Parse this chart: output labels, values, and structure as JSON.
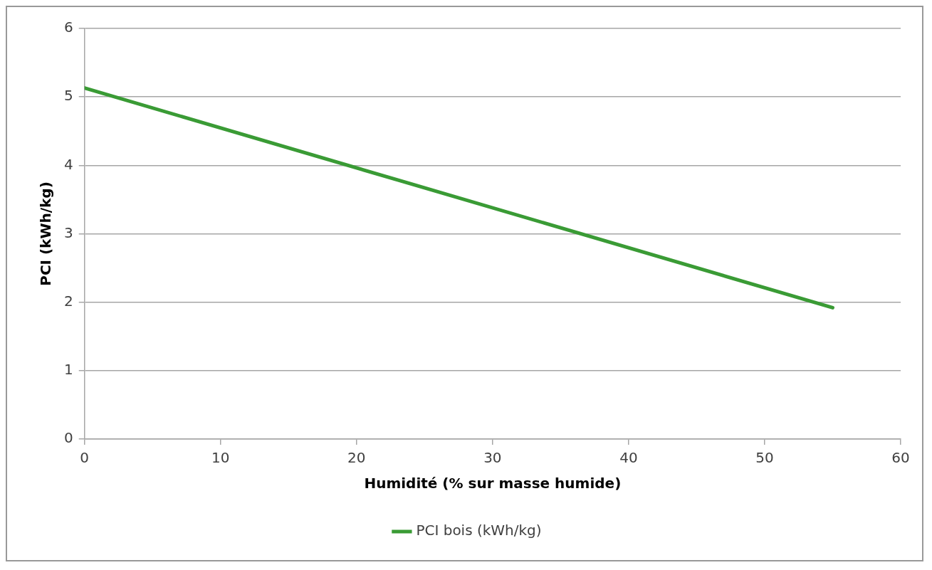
{
  "chart_data": {
    "type": "line",
    "xlabel": "Humidité (% sur masse humide)",
    "ylabel": "PCI (kWh/kg)",
    "x": [
      0,
      55
    ],
    "series": [
      {
        "name": "PCI bois (kWh/kg)",
        "color": "#3a9b35",
        "values": [
          5.13,
          1.92
        ]
      }
    ],
    "xlim": [
      0,
      60
    ],
    "xticks": [
      0,
      10,
      20,
      30,
      40,
      50,
      60
    ],
    "ylim": [
      0,
      6
    ],
    "yticks": [
      0,
      1,
      2,
      3,
      4,
      5,
      6
    ],
    "grid": "y",
    "legend": "bottom",
    "marker": "none",
    "line_style": "solid"
  }
}
